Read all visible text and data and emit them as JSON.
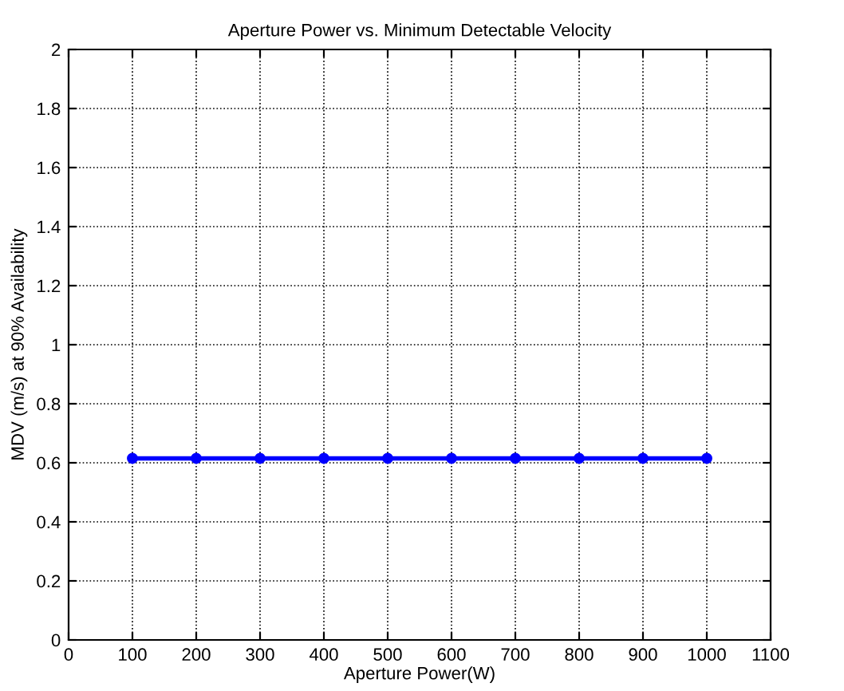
{
  "chart_data": {
    "type": "line",
    "title": "Aperture Power vs. Minimum Detectable Velocity",
    "xlabel": "Aperture Power(W)",
    "ylabel": "MDV (m/s) at 90% Availability",
    "x": [
      100,
      200,
      300,
      400,
      500,
      600,
      700,
      800,
      900,
      1000
    ],
    "series": [
      {
        "color": "#0000ff",
        "values": [
          0.615,
          0.615,
          0.615,
          0.615,
          0.615,
          0.615,
          0.615,
          0.615,
          0.615,
          0.615
        ]
      }
    ],
    "xlim": [
      0,
      1100
    ],
    "xticks": [
      0,
      100,
      200,
      300,
      400,
      500,
      600,
      700,
      800,
      900,
      1000,
      1100
    ],
    "ylim": [
      0,
      2
    ],
    "yticks": [
      0,
      0.2,
      0.4,
      0.6,
      0.8,
      1,
      1.2,
      1.4,
      1.6,
      1.8,
      2
    ],
    "grid": true,
    "marker": "circle",
    "line_style": "solid"
  }
}
